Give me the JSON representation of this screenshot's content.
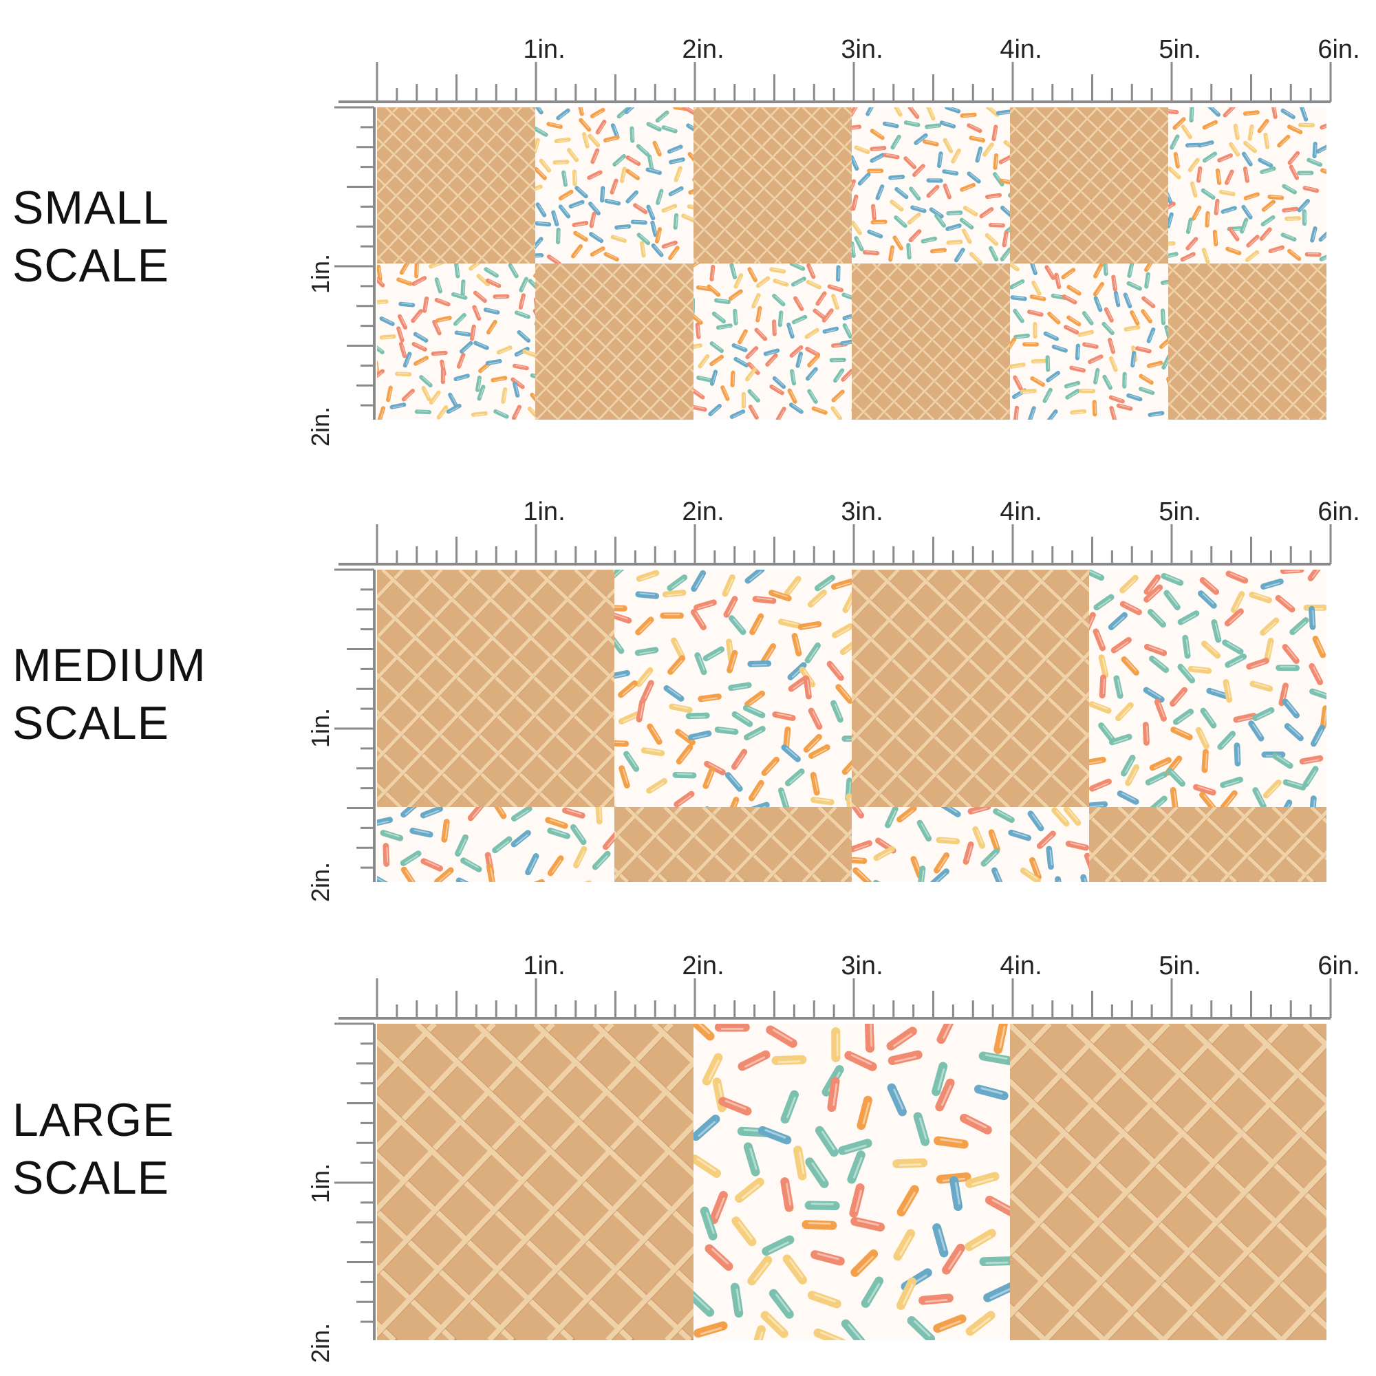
{
  "ruler": {
    "inch_labels": [
      "1in.",
      "2in.",
      "3in.",
      "4in.",
      "5in.",
      "6in."
    ],
    "vertical_labels": [
      "1in.",
      "2in."
    ]
  },
  "colors": {
    "waffle_base": "#dcae7e",
    "waffle_line": "#f0d2a9",
    "waffle_shadow": "#c48f5e",
    "cream": "#fffaf5",
    "ruler": "#8a8a8a",
    "sprinkles": [
      "#f08a70",
      "#f4a04a",
      "#f6cf7e",
      "#7cc1b0",
      "#68a9c8"
    ]
  },
  "sections": [
    {
      "id": "small",
      "label_line1": "SMALL",
      "label_line2": "SCALE",
      "tiles_per_row": 6,
      "rows": 2
    },
    {
      "id": "medium",
      "label_line1": "MEDIUM",
      "label_line2": "SCALE",
      "tiles_per_row": 4,
      "rows": 2
    },
    {
      "id": "large",
      "label_line1": "LARGE",
      "label_line2": "SCALE",
      "tiles_per_row": 3,
      "rows": 1
    }
  ],
  "pattern": {
    "tile_types": [
      "waffle-cone",
      "sprinkles"
    ]
  }
}
